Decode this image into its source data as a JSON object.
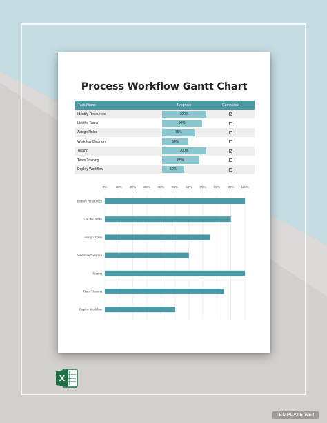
{
  "document": {
    "title": "Process Workflow Gantt Chart",
    "table": {
      "headers": [
        "Task Name",
        "Progress",
        "Completed"
      ],
      "rows": [
        {
          "task": "Identify Resources",
          "progress": "100%",
          "progress_value": 100,
          "completed": true
        },
        {
          "task": "List the Tasks",
          "progress": "90%",
          "progress_value": 90,
          "completed": false
        },
        {
          "task": "Assign Roles",
          "progress": "75%",
          "progress_value": 75,
          "completed": false
        },
        {
          "task": "Workflow Diagram",
          "progress": "60%",
          "progress_value": 60,
          "completed": false
        },
        {
          "task": "Testing",
          "progress": "100%",
          "progress_value": 100,
          "completed": true
        },
        {
          "task": "Team Training",
          "progress": "85%",
          "progress_value": 85,
          "completed": false
        },
        {
          "task": "Deploy Workflow",
          "progress": "50%",
          "progress_value": 50,
          "completed": false
        }
      ]
    }
  },
  "chart_data": {
    "type": "bar",
    "orientation": "horizontal",
    "categories": [
      "Identify Resources",
      "List the Tasks",
      "Assign Roles",
      "Workflow Diagram",
      "Testing",
      "Team Training",
      "Deploy Workflow"
    ],
    "values": [
      100,
      90,
      75,
      60,
      100,
      85,
      50
    ],
    "xlim": [
      0,
      100
    ],
    "x_ticks": [
      "0%",
      "10%",
      "20%",
      "30%",
      "40%",
      "50%",
      "60%",
      "70%",
      "80%",
      "90%",
      "100%"
    ],
    "x_tick_values": [
      0,
      10,
      20,
      30,
      40,
      50,
      60,
      70,
      80,
      90,
      100
    ],
    "grid": true,
    "bar_color": "#4a9aa5"
  },
  "colors": {
    "header": "#4a9aa5",
    "progress_bar": "#8ac6cd",
    "bg_top": "#c5dde2",
    "bg_bottom": "#d3d0cd"
  },
  "brand": {
    "label": "TEMPLATE.NET",
    "icon": "excel-icon"
  }
}
